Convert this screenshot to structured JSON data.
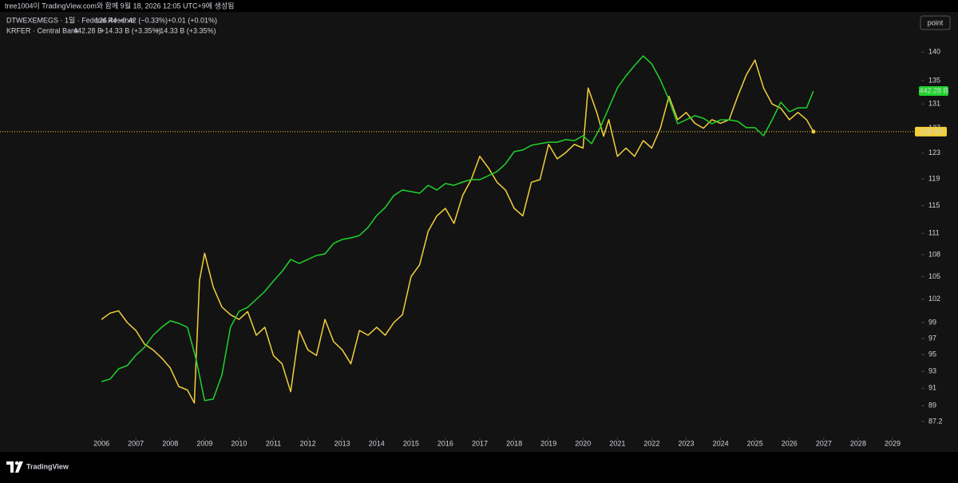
{
  "header": {
    "title": "tree1004이 TradingView.com와 함께 9월 18, 2026 12:05 UTC+9에 생성됨"
  },
  "toolbar": {
    "button": "point"
  },
  "footer": {
    "brand": "TradingView"
  },
  "chart_data": {
    "type": "line",
    "log_scale": true,
    "xlim": [
      2003.05,
      2029.51
    ],
    "xticks": [
      2006,
      2007,
      2008,
      2009,
      2010,
      2011,
      2012,
      2013,
      2014,
      2015,
      2016,
      2017,
      2018,
      2019,
      2020,
      2021,
      2022,
      2023,
      2024,
      2025,
      2026,
      2027,
      2028,
      2029
    ],
    "ylim": [
      85.7,
      147.4
    ],
    "yticks": [
      140,
      135,
      131,
      127,
      123,
      119,
      115,
      111,
      108,
      105,
      102,
      99,
      97,
      95,
      93,
      91,
      89,
      87.2
    ],
    "y2lim": [
      180.6,
      502.4
    ],
    "series": [
      {
        "name": "DTWEXEMEGS · 1일 · Federal Reserve",
        "color": "#f2d03b",
        "legend_values": [
          "126.44",
          "−0.42 (−0.33%)",
          "+0.01 (+0.01%)"
        ],
        "x": [
          2006,
          2006.25,
          2006.5,
          2006.75,
          2007,
          2007.25,
          2007.5,
          2007.75,
          2008,
          2008.25,
          2008.5,
          2008.7,
          2008.85,
          2009,
          2009.25,
          2009.5,
          2009.75,
          2010,
          2010.25,
          2010.5,
          2010.75,
          2011,
          2011.25,
          2011.5,
          2011.75,
          2012,
          2012.25,
          2012.5,
          2012.75,
          2013,
          2013.25,
          2013.5,
          2013.75,
          2014,
          2014.25,
          2014.5,
          2014.75,
          2015,
          2015.25,
          2015.5,
          2015.75,
          2016,
          2016.25,
          2016.5,
          2016.75,
          2017,
          2017.25,
          2017.5,
          2017.75,
          2018,
          2018.25,
          2018.5,
          2018.75,
          2019,
          2019.25,
          2019.5,
          2019.75,
          2020,
          2020.15,
          2020.4,
          2020.6,
          2020.75,
          2021,
          2021.25,
          2021.5,
          2021.75,
          2022,
          2022.25,
          2022.5,
          2022.75,
          2023,
          2023.25,
          2023.5,
          2023.75,
          2024,
          2024.25,
          2024.5,
          2024.75,
          2025,
          2025.25,
          2025.5,
          2025.75,
          2026,
          2026.25,
          2026.5,
          2026.7
        ],
        "values": [
          99.4,
          100.2,
          100.5,
          99.0,
          98.0,
          96.3,
          95.6,
          94.6,
          93.4,
          91.2,
          90.8,
          89.3,
          104.5,
          108.2,
          103.6,
          101.0,
          100.0,
          99.4,
          100.4,
          97.4,
          98.4,
          94.9,
          93.9,
          90.6,
          98.0,
          95.6,
          94.9,
          99.4,
          96.6,
          95.6,
          93.9,
          98.0,
          97.4,
          98.4,
          97.4,
          99.0,
          100.0,
          105.0,
          106.6,
          111.3,
          113.5,
          114.6,
          112.4,
          116.5,
          118.9,
          122.5,
          120.7,
          118.5,
          117.3,
          114.6,
          113.5,
          118.5,
          118.9,
          124.4,
          122.1,
          123.1,
          124.4,
          123.8,
          133.7,
          129.6,
          125.7,
          128.4,
          122.5,
          123.8,
          122.5,
          125.0,
          123.8,
          127.0,
          132.3,
          128.4,
          129.6,
          127.8,
          127.0,
          128.4,
          127.8,
          128.4,
          132.3,
          136.0,
          138.6,
          133.7,
          131.0,
          130.3,
          128.4,
          129.6,
          128.4,
          126.44
        ]
      },
      {
        "name": "KRFER · Central Bank",
        "color": "#1fd32a",
        "axis": "y2",
        "legend_values": [
          "442.28 B",
          "+14.33 B (+3.35%)",
          "+14.33 B (+3.35%)"
        ],
        "x": [
          2006,
          2006.25,
          2006.5,
          2006.75,
          2007,
          2007.25,
          2007.5,
          2007.75,
          2008,
          2008.25,
          2008.5,
          2008.75,
          2009,
          2009.25,
          2009.5,
          2009.75,
          2010,
          2010.25,
          2010.5,
          2010.75,
          2011,
          2011.25,
          2011.5,
          2011.75,
          2012,
          2012.25,
          2012.5,
          2012.75,
          2013,
          2013.25,
          2013.5,
          2013.75,
          2014,
          2014.25,
          2014.5,
          2014.75,
          2015,
          2015.25,
          2015.5,
          2015.75,
          2016,
          2016.25,
          2016.5,
          2016.75,
          2017,
          2017.25,
          2017.5,
          2017.75,
          2018,
          2018.25,
          2018.5,
          2018.75,
          2019,
          2019.25,
          2019.5,
          2019.75,
          2020,
          2020.25,
          2020.5,
          2020.75,
          2021,
          2021.25,
          2021.5,
          2021.75,
          2022,
          2022.25,
          2022.5,
          2022.75,
          2023,
          2023.25,
          2023.5,
          2023.75,
          2024,
          2024.25,
          2024.5,
          2024.75,
          2025,
          2025.25,
          2025.5,
          2025.75,
          2026,
          2026.25,
          2026.5,
          2026.7
        ],
        "values": [
          221.3,
          223.2,
          231.0,
          233.5,
          241.4,
          247.4,
          256.5,
          262.6,
          267.5,
          265.6,
          262.6,
          238.4,
          206.8,
          208.0,
          226.2,
          262.6,
          274.7,
          277.8,
          283.8,
          289.9,
          297.8,
          305.1,
          314.2,
          311.2,
          314.2,
          317.2,
          318.4,
          326.4,
          329.4,
          330.6,
          332.4,
          338.5,
          347.6,
          353.7,
          362.8,
          367.0,
          365.8,
          364.6,
          370.6,
          367.0,
          371.9,
          370.6,
          373.1,
          374.9,
          374.9,
          377.9,
          381.0,
          387.0,
          396.2,
          397.4,
          401.0,
          402.2,
          403.4,
          403.4,
          405.3,
          404.6,
          408.3,
          402.2,
          414.4,
          429.5,
          444.7,
          453.8,
          461.7,
          469.0,
          462.9,
          450.8,
          435.6,
          417.4,
          420.4,
          423.5,
          421.6,
          417.4,
          420.4,
          420.4,
          419.2,
          414.4,
          414.4,
          408.3,
          420.4,
          433.8,
          426.5,
          429.5,
          429.5,
          442.28
        ]
      }
    ]
  }
}
